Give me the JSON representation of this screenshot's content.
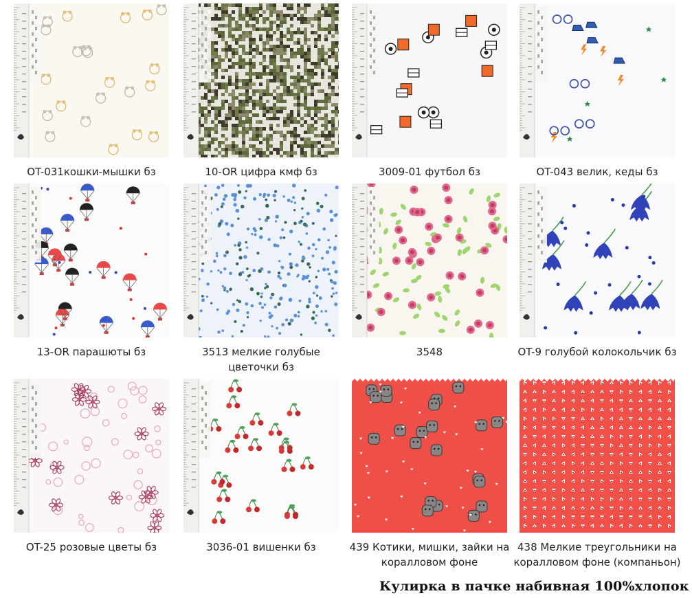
{
  "fabrics": [
    {
      "caption": "OT-031кошки-мышки бз",
      "pattern": "cats-mice-icon",
      "bg": "#fbf8f2"
    },
    {
      "caption": "10-OR цифра кмф бз",
      "pattern": "digital-camo-icon",
      "bg": "#e9e6df"
    },
    {
      "caption": "3009-01 футбол бз",
      "pattern": "football-icon",
      "bg": "#f7f7f7"
    },
    {
      "caption": "OT-043 велик, кеды бз",
      "pattern": "bike-sneakers-icon",
      "bg": "#f8f9fb"
    },
    {
      "caption": "13-OR парашюты бз",
      "pattern": "parachutes-icon",
      "bg": "#fbfbfb"
    },
    {
      "caption": "3513 мелкие голубые цветочки бз",
      "pattern": "small-blue-flowers-icon",
      "bg": "#eef3f9"
    },
    {
      "caption": "3548",
      "pattern": "pink-roses-icon",
      "bg": "#f8f6ef"
    },
    {
      "caption": "OT-9 голубой колокольчик бз",
      "pattern": "bluebell-icon",
      "bg": "#f9f9fb"
    },
    {
      "caption": "OT-25 розовые цветы бз",
      "pattern": "pink-flowers-icon",
      "bg": "#fbf6f7"
    },
    {
      "caption": "3036-01 вишенки бз",
      "pattern": "cherries-icon",
      "bg": "#fbfbfb"
    },
    {
      "caption": "439 Котики, мишки, зайки на коралловом фоне",
      "pattern": "animals-coral-icon",
      "bg": "#ee4f47"
    },
    {
      "caption": "438 Мелкие треугольники на коралловом фоне (компаньон)",
      "pattern": "triangles-coral-icon",
      "bg": "#ef5048"
    }
  ],
  "footer": "Кулирка в пачке набивная 100%хлопок"
}
